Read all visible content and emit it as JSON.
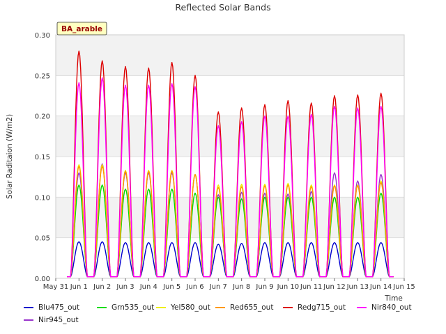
{
  "chart_data": {
    "type": "line",
    "title": "Reflected Solar Bands",
    "xlabel": "Time",
    "ylabel": "Solar Raditaion (W/m2)",
    "annotation": "BA_arable",
    "ylim": [
      0,
      0.3
    ],
    "yticks": [
      0.0,
      0.05,
      0.1,
      0.15,
      0.2,
      0.25,
      0.3
    ],
    "xticks": [
      "May 31",
      "Jun 1",
      "Jun 2",
      "Jun 3",
      "Jun 4",
      "Jun 5",
      "Jun 6",
      "Jun 7",
      "Jun 8",
      "Jun 9",
      "Jun 10",
      "Jun 11",
      "Jun 12",
      "Jun 13",
      "Jun 14",
      "Jun 15"
    ],
    "x": [
      "Jun 1",
      "Jun 2",
      "Jun 3",
      "Jun 4",
      "Jun 5",
      "Jun 6",
      "Jun 7",
      "Jun 8",
      "Jun 9",
      "Jun 10",
      "Jun 11",
      "Jun 12",
      "Jun 13",
      "Jun 14"
    ],
    "x_note": "daily peak values near solar noon; values fall to ~0 at night",
    "grid": true,
    "legend_position": "bottom",
    "series": [
      {
        "name": "Blu475_out",
        "color": "#0000cc",
        "values": [
          0.045,
          0.045,
          0.044,
          0.044,
          0.044,
          0.044,
          0.042,
          0.043,
          0.044,
          0.044,
          0.044,
          0.044,
          0.044,
          0.044
        ]
      },
      {
        "name": "Grn535_out",
        "color": "#00dd00",
        "values": [
          0.115,
          0.115,
          0.11,
          0.11,
          0.11,
          0.105,
          0.1,
          0.098,
          0.1,
          0.1,
          0.1,
          0.1,
          0.1,
          0.105
        ]
      },
      {
        "name": "Yel580_out",
        "color": "#eeee00",
        "values": [
          0.14,
          0.14,
          0.133,
          0.133,
          0.133,
          0.128,
          0.115,
          0.116,
          0.116,
          0.117,
          0.115,
          0.115,
          0.115,
          0.12
        ]
      },
      {
        "name": "Red655_out",
        "color": "#ff9900",
        "values": [
          0.138,
          0.138,
          0.132,
          0.132,
          0.132,
          0.128,
          0.112,
          0.113,
          0.114,
          0.115,
          0.113,
          0.114,
          0.114,
          0.118
        ]
      },
      {
        "name": "Redg715_out",
        "color": "#dd0000",
        "values": [
          0.28,
          0.268,
          0.261,
          0.259,
          0.266,
          0.25,
          0.205,
          0.21,
          0.214,
          0.219,
          0.216,
          0.225,
          0.226,
          0.228
        ]
      },
      {
        "name": "Nir840_out",
        "color": "#ff00ff",
        "values": [
          0.241,
          0.247,
          0.238,
          0.238,
          0.24,
          0.236,
          0.188,
          0.193,
          0.2,
          0.2,
          0.202,
          0.212,
          0.21,
          0.212
        ]
      },
      {
        "name": "Nir945_out",
        "color": "#9933cc",
        "values": [
          0.13,
          0.141,
          0.13,
          0.13,
          0.13,
          0.128,
          0.103,
          0.106,
          0.105,
          0.104,
          0.107,
          0.13,
          0.12,
          0.128
        ]
      }
    ]
  }
}
